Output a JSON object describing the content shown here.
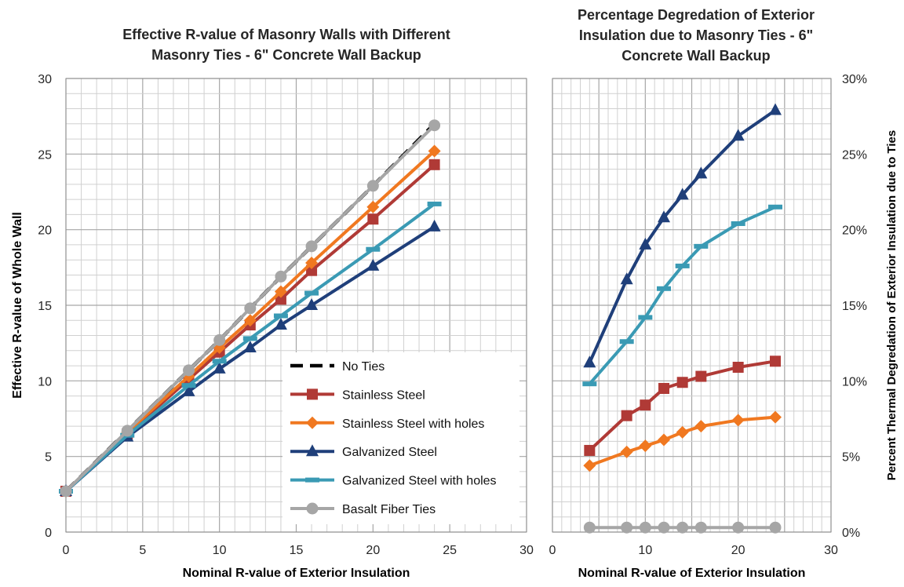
{
  "chart_data": [
    {
      "type": "line",
      "title": "Effective R-value of Masonry Walls with Different Masonry Ties - 6\" Concrete Wall Backup",
      "title_lines": [
        "Effective R-value of Masonry Walls with Different",
        "Masonry Ties - 6\" Concrete Wall Backup"
      ],
      "xlabel": "Nominal R-value of Exterior Insulation",
      "ylabel": "Effective R-value of Whole Wall",
      "xlim": [
        0,
        30
      ],
      "ylim": [
        0,
        30
      ],
      "x_ticks": [
        "0",
        "5",
        "10",
        "15",
        "20",
        "25",
        "30"
      ],
      "y_ticks": [
        "0",
        "5",
        "10",
        "15",
        "20",
        "25",
        "30"
      ],
      "grid": true,
      "legend_position": "bottom-right",
      "series": [
        {
          "name": "No Ties",
          "color": "#000000",
          "marker": "none",
          "dashed": true,
          "x": [
            0,
            4,
            8,
            10,
            12,
            14,
            16,
            20,
            24
          ],
          "y": [
            2.7,
            6.7,
            10.7,
            12.7,
            14.8,
            16.9,
            18.9,
            22.9,
            27.0
          ]
        },
        {
          "name": "Stainless Steel",
          "color": "#b03a36",
          "marker": "square",
          "x": [
            0,
            4,
            8,
            10,
            12,
            14,
            16,
            20,
            24
          ],
          "y": [
            2.7,
            6.5,
            10.1,
            11.9,
            13.7,
            15.4,
            17.3,
            20.7,
            24.3
          ]
        },
        {
          "name": "Stainless Steel with holes",
          "color": "#f07820",
          "marker": "diamond",
          "x": [
            0,
            4,
            8,
            10,
            12,
            14,
            16,
            20,
            24
          ],
          "y": [
            2.7,
            6.6,
            10.3,
            12.2,
            14.0,
            15.9,
            17.8,
            21.5,
            25.2
          ]
        },
        {
          "name": "Galvanized Steel",
          "color": "#1f3f7a",
          "marker": "triangle",
          "x": [
            0,
            4,
            8,
            10,
            12,
            14,
            16,
            20,
            24
          ],
          "y": [
            2.7,
            6.3,
            9.3,
            10.8,
            12.2,
            13.7,
            15.0,
            17.6,
            20.2
          ]
        },
        {
          "name": "Galvanized Steel with holes",
          "color": "#3a9ab4",
          "marker": "dash",
          "x": [
            0,
            4,
            8,
            10,
            12,
            14,
            16,
            20,
            24
          ],
          "y": [
            2.7,
            6.4,
            9.7,
            11.3,
            12.8,
            14.3,
            15.8,
            18.7,
            21.7
          ]
        },
        {
          "name": "Basalt Fiber Ties",
          "color": "#a6a6a6",
          "marker": "circle",
          "x": [
            0,
            4,
            8,
            10,
            12,
            14,
            16,
            20,
            24
          ],
          "y": [
            2.7,
            6.7,
            10.7,
            12.7,
            14.8,
            16.9,
            18.9,
            22.9,
            26.9
          ]
        }
      ]
    },
    {
      "type": "line",
      "title": "Percentage Degredation of Exterior Insulation due to Masonry Ties - 6\" Concrete Wall Backup",
      "title_lines": [
        "Percentage Degredation of Exterior",
        "Insulation due to Masonry Ties - 6\"",
        "Concrete Wall Backup"
      ],
      "xlabel": "Nominal R-value of Exterior Insulation",
      "ylabel": "Percent Thermal Degredation of Exterior Insulation due to Ties",
      "xlim": [
        0,
        30
      ],
      "ylim": [
        0,
        30
      ],
      "x_ticks": [
        "0",
        "10",
        "20",
        "30"
      ],
      "y_ticks": [
        "0%",
        "5%",
        "10%",
        "15%",
        "20%",
        "25%",
        "30%"
      ],
      "y_axis_side": "right",
      "grid": true,
      "series": [
        {
          "name": "Stainless Steel",
          "color": "#b03a36",
          "marker": "square",
          "x": [
            4,
            8,
            10,
            12,
            14,
            16,
            20,
            24
          ],
          "y": [
            5.4,
            7.7,
            8.4,
            9.5,
            9.9,
            10.3,
            10.9,
            11.3
          ]
        },
        {
          "name": "Stainless Steel with holes",
          "color": "#f07820",
          "marker": "diamond",
          "x": [
            4,
            8,
            10,
            12,
            14,
            16,
            20,
            24
          ],
          "y": [
            4.4,
            5.3,
            5.7,
            6.1,
            6.6,
            7.0,
            7.4,
            7.6
          ]
        },
        {
          "name": "Galvanized Steel",
          "color": "#1f3f7a",
          "marker": "triangle",
          "x": [
            4,
            8,
            10,
            12,
            14,
            16,
            20,
            24
          ],
          "y": [
            11.2,
            16.7,
            19.0,
            20.8,
            22.3,
            23.7,
            26.2,
            27.9
          ]
        },
        {
          "name": "Galvanized Steel with holes",
          "color": "#3a9ab4",
          "marker": "dash",
          "x": [
            4,
            8,
            10,
            12,
            14,
            16,
            20,
            24
          ],
          "y": [
            9.8,
            12.6,
            14.2,
            16.1,
            17.6,
            18.9,
            20.4,
            21.5
          ]
        },
        {
          "name": "Basalt Fiber Ties",
          "color": "#a6a6a6",
          "marker": "circle",
          "x": [
            4,
            8,
            10,
            12,
            14,
            16,
            20,
            24
          ],
          "y": [
            0.3,
            0.3,
            0.3,
            0.3,
            0.3,
            0.3,
            0.3,
            0.3
          ]
        }
      ]
    }
  ]
}
